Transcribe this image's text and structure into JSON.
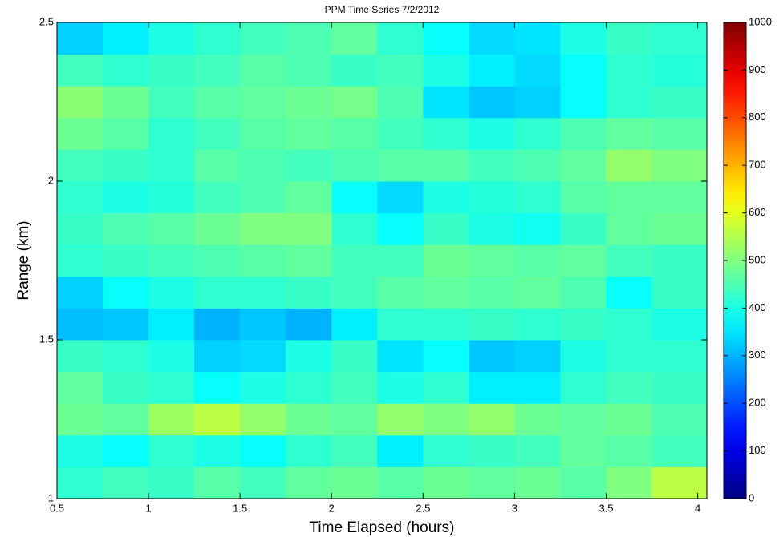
{
  "chart_data": {
    "type": "heatmap",
    "title": "PPM Time Series 7/2/2012",
    "x_label": "Time Elapsed (hours)",
    "y_label": "Range (km)",
    "x": [
      0.625,
      0.875,
      1.125,
      1.375,
      1.625,
      1.875,
      2.125,
      2.375,
      2.625,
      2.875,
      3.125,
      3.375,
      3.625,
      3.875
    ],
    "y": [
      1.05,
      1.15,
      1.25,
      1.35,
      1.45,
      1.55,
      1.65,
      1.75,
      1.85,
      1.95,
      2.05,
      2.15,
      2.25,
      2.35,
      2.45
    ],
    "z": [
      [
        420,
        440,
        430,
        460,
        440,
        470,
        480,
        460,
        480,
        470,
        480,
        460,
        500,
        560
      ],
      [
        400,
        380,
        420,
        400,
        380,
        420,
        440,
        360,
        420,
        430,
        440,
        470,
        460,
        440
      ],
      [
        480,
        470,
        530,
        560,
        520,
        480,
        470,
        520,
        500,
        520,
        480,
        470,
        480,
        450
      ],
      [
        470,
        430,
        420,
        380,
        400,
        420,
        440,
        400,
        420,
        360,
        360,
        420,
        440,
        430
      ],
      [
        430,
        420,
        400,
        330,
        340,
        400,
        430,
        350,
        380,
        320,
        330,
        400,
        420,
        420
      ],
      [
        310,
        320,
        360,
        300,
        320,
        300,
        360,
        420,
        420,
        430,
        420,
        430,
        420,
        400
      ],
      [
        330,
        380,
        400,
        420,
        420,
        430,
        440,
        460,
        470,
        460,
        470,
        450,
        380,
        430
      ],
      [
        420,
        430,
        440,
        450,
        460,
        470,
        440,
        440,
        480,
        470,
        460,
        470,
        440,
        430
      ],
      [
        430,
        450,
        460,
        480,
        500,
        500,
        420,
        380,
        430,
        400,
        390,
        430,
        470,
        480
      ],
      [
        420,
        400,
        410,
        440,
        450,
        470,
        380,
        340,
        400,
        410,
        420,
        460,
        470,
        470
      ],
      [
        440,
        430,
        420,
        460,
        450,
        440,
        450,
        460,
        460,
        440,
        450,
        470,
        520,
        500
      ],
      [
        480,
        460,
        420,
        440,
        460,
        470,
        460,
        440,
        420,
        400,
        420,
        450,
        470,
        460
      ],
      [
        510,
        480,
        440,
        460,
        470,
        480,
        490,
        450,
        350,
        320,
        330,
        380,
        420,
        430
      ],
      [
        440,
        420,
        430,
        440,
        460,
        450,
        430,
        440,
        400,
        360,
        340,
        380,
        420,
        410
      ],
      [
        330,
        360,
        400,
        420,
        440,
        450,
        470,
        420,
        380,
        340,
        350,
        400,
        430,
        420
      ]
    ],
    "xlim": [
      0.5,
      4.05
    ],
    "xticks": [
      0.5,
      1,
      1.5,
      2,
      2.5,
      3,
      3.5,
      4
    ],
    "ylim": [
      1,
      2.5
    ],
    "yticks": [
      1,
      1.5,
      2,
      2.5
    ],
    "colormap": "jet",
    "clim": [
      0,
      1000
    ],
    "cticks": [
      0,
      100,
      200,
      300,
      400,
      500,
      600,
      700,
      800,
      900,
      1000
    ]
  }
}
